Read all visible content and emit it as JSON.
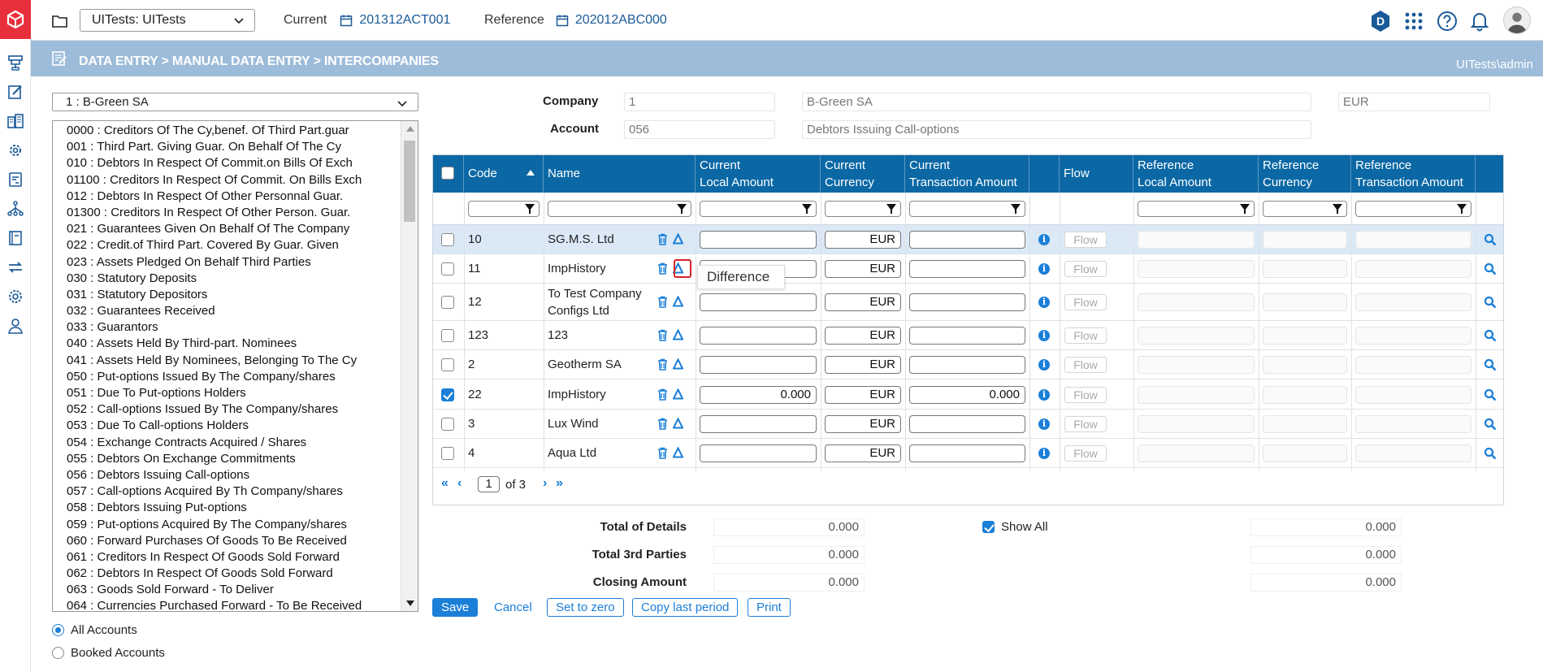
{
  "topbar": {
    "workspace": "UITests: UITests",
    "current_label": "Current",
    "current_value": "201312ACT001",
    "reference_label": "Reference",
    "reference_value": "202012ABC000",
    "user_badge": "D"
  },
  "crumb": {
    "path": "DATA ENTRY > MANUAL DATA ENTRY > INTERCOMPANIES",
    "user": "UITests\\admin"
  },
  "company_select": "1 : B-Green SA",
  "accounts": [
    "0000 : Creditors Of The Cy,benef. Of Third Part.guar",
    "001 : Third Part. Giving Guar. On Behalf Of The Cy",
    "010 : Debtors In Respect Of Commit.on Bills Of Exch",
    "01100 : Creditors In Respect Of Commit. On Bills Exch",
    "012 : Debtors In Respect Of Other Personnal Guar.",
    "01300 : Creditors In Respect Of Other Person. Guar.",
    "021 : Guarantees Given On Behalf Of The Company",
    "022 : Credit.of Third Part. Covered By Guar. Given",
    "023 : Assets Pledged On Behalf Third Parties",
    "030 : Statutory Deposits",
    "031 : Statutory Depositors",
    "032 : Guarantees Received",
    "033 : Guarantors",
    "040 : Assets Held By Third-part. Nominees",
    "041 : Assets Held By Nominees, Belonging To The Cy",
    "050 : Put-options Issued By The Company/shares",
    "051 : Due To Put-options Holders",
    "052 : Call-options Issued By The Company/shares",
    "053 : Due To Call-options Holders",
    "054 : Exchange Contracts Acquired / Shares",
    "055 : Debtors On Exchange Commitments",
    "056 : Debtors Issuing Call-options",
    "057 : Call-options Acquired By Th Company/shares",
    "058 : Debtors Issuing Put-options",
    "059 : Put-options Acquired By The Company/shares",
    "060 : Forward Purchases Of Goods To Be Received",
    "061 : Creditors In Respect Of Goods Sold Forward",
    "062 : Debtors In Respect Of Goods Sold Forward",
    "063 : Goods Sold Forward - To Deliver",
    "064 : Currencies Purchased Forward - To Be Received"
  ],
  "radios": {
    "all": "All Accounts",
    "booked": "Booked Accounts"
  },
  "form": {
    "company_label": "Company",
    "company_code": "1",
    "company_name": "B-Green SA",
    "company_currency": "EUR",
    "account_label": "Account",
    "account_code": "056",
    "account_name": "Debtors Issuing Call-options"
  },
  "grid": {
    "headers": {
      "code": "Code",
      "name": "Name",
      "cur_local_1": "Current",
      "cur_local_2": "Local Amount",
      "cur_ccy_1": "Current",
      "cur_ccy_2": "Currency",
      "cur_tx_1": "Current",
      "cur_tx_2": "Transaction Amount",
      "flow": "Flow",
      "ref_local_1": "Reference",
      "ref_local_2": "Local Amount",
      "ref_ccy_1": "Reference",
      "ref_ccy_2": "Currency",
      "ref_tx_1": "Reference",
      "ref_tx_2": "Transaction Amount"
    },
    "flow_button": "Flow",
    "rows": [
      {
        "code": "10",
        "name": "SG.M.S. Ltd",
        "local": "",
        "currency": "EUR",
        "tx": "",
        "checked": false,
        "selected": true
      },
      {
        "code": "11",
        "name": "ImpHistory",
        "local": "",
        "currency": "EUR",
        "tx": "",
        "checked": false,
        "selected": false
      },
      {
        "code": "12",
        "name": "To Test Company Configs Ltd",
        "local": "",
        "currency": "EUR",
        "tx": "",
        "checked": false,
        "selected": false
      },
      {
        "code": "123",
        "name": "123",
        "local": "",
        "currency": "EUR",
        "tx": "",
        "checked": false,
        "selected": false
      },
      {
        "code": "2",
        "name": "Geotherm SA",
        "local": "",
        "currency": "EUR",
        "tx": "",
        "checked": false,
        "selected": false
      },
      {
        "code": "22",
        "name": "ImpHistory",
        "local": "0.000",
        "currency": "EUR",
        "tx": "0.000",
        "checked": true,
        "selected": false
      },
      {
        "code": "3",
        "name": "Lux Wind",
        "local": "",
        "currency": "EUR",
        "tx": "",
        "checked": false,
        "selected": false
      },
      {
        "code": "4",
        "name": "Aqua Ltd",
        "local": "",
        "currency": "EUR",
        "tx": "",
        "checked": false,
        "selected": false
      }
    ],
    "pager": {
      "page": "1",
      "of_label": "of 3"
    },
    "tooltip": "Difference"
  },
  "totals": {
    "details_label": "Total of Details",
    "details_value": "0.000",
    "third_label": "Total 3rd Parties",
    "third_value": "0.000",
    "closing_label": "Closing Amount",
    "closing_value": "0.000",
    "show_all": "Show All",
    "ref_details_value": "0.000",
    "ref_third_value": "0.000",
    "ref_closing_value": "0.000"
  },
  "buttons": {
    "save": "Save",
    "cancel": "Cancel",
    "zero": "Set to zero",
    "copy": "Copy last period",
    "print": "Print"
  },
  "colors": {
    "brand_red": "#e8303c",
    "header_blue": "#0b68a5",
    "accent": "#1b7fd8",
    "crumb_bg": "#9dbcd9"
  }
}
